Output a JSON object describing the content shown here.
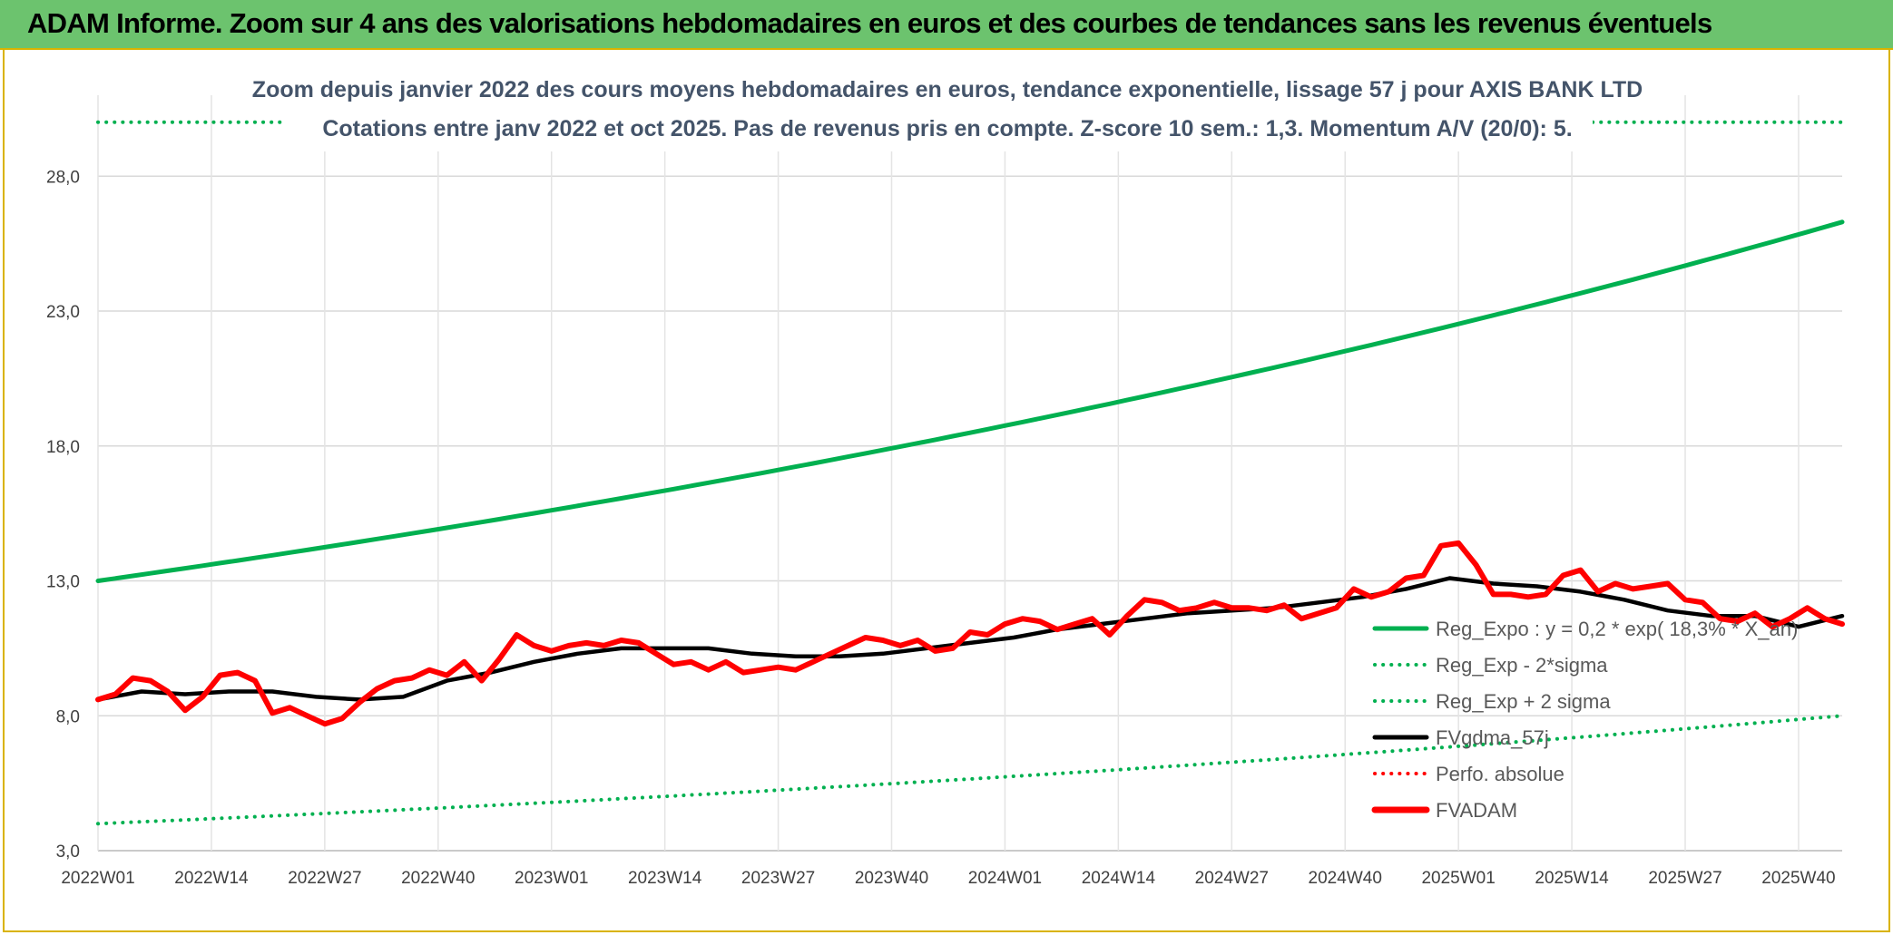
{
  "header": {
    "title": "ADAM Informe. Zoom sur 4 ans des valorisations hebdomadaires en euros et des courbes de tendances sans les revenus éventuels"
  },
  "chart_data": {
    "type": "line",
    "title": "Zoom depuis janvier 2022 des cours moyens hebdomadaires en euros, tendance exponentielle, lissage 57 j pour AXIS BANK LTD",
    "subtitle": "Cotations entre janv 2022 et oct 2025. Pas de revenus pris en compte. Z-score 10 sem.: 1,3. Momentum A/V (20/0): 5.",
    "xlabel": "",
    "ylabel": "",
    "ylim": [
      3.0,
      31.0
    ],
    "yticks": [
      "3,0",
      "8,0",
      "13,0",
      "18,0",
      "23,0",
      "28,0"
    ],
    "ytick_values": [
      3,
      8,
      13,
      18,
      23,
      28
    ],
    "xticks": [
      "2022W01",
      "2022W14",
      "2022W27",
      "2022W40",
      "2023W01",
      "2023W14",
      "2023W27",
      "2023W40",
      "2024W01",
      "2024W14",
      "2024W27",
      "2024W40",
      "2025W01",
      "2025W14",
      "2025W27",
      "2025W40"
    ],
    "weeks_total": 201,
    "grid": true,
    "legend_position": "right",
    "series": [
      {
        "name": "Reg_Expo : y = 0,2 * exp( 18,3% * X_an)",
        "color": "#00b050",
        "style": "solid",
        "start": 13.0,
        "end": 26.3
      },
      {
        "name": "Reg_Exp - 2*sigma",
        "color": "#00b050",
        "style": "dotted",
        "start": 4.0,
        "end": 8.0
      },
      {
        "name": "Reg_Exp + 2 sigma",
        "color": "#00b050",
        "style": "dotted",
        "start": 30.0,
        "end": 30.0
      },
      {
        "name": "FVgdma_57j",
        "color": "#000000",
        "style": "solid",
        "points": [
          [
            0,
            8.6
          ],
          [
            5,
            8.9
          ],
          [
            10,
            8.8
          ],
          [
            15,
            8.9
          ],
          [
            20,
            8.9
          ],
          [
            25,
            8.7
          ],
          [
            30,
            8.6
          ],
          [
            35,
            8.7
          ],
          [
            40,
            9.3
          ],
          [
            45,
            9.6
          ],
          [
            50,
            10.0
          ],
          [
            55,
            10.3
          ],
          [
            60,
            10.5
          ],
          [
            65,
            10.5
          ],
          [
            70,
            10.5
          ],
          [
            75,
            10.3
          ],
          [
            80,
            10.2
          ],
          [
            85,
            10.2
          ],
          [
            90,
            10.3
          ],
          [
            95,
            10.5
          ],
          [
            100,
            10.7
          ],
          [
            105,
            10.9
          ],
          [
            110,
            11.2
          ],
          [
            115,
            11.4
          ],
          [
            120,
            11.6
          ],
          [
            125,
            11.8
          ],
          [
            130,
            11.9
          ],
          [
            135,
            12.0
          ],
          [
            140,
            12.2
          ],
          [
            145,
            12.4
          ],
          [
            150,
            12.7
          ],
          [
            155,
            13.1
          ],
          [
            160,
            12.9
          ],
          [
            165,
            12.8
          ],
          [
            170,
            12.6
          ],
          [
            175,
            12.3
          ],
          [
            180,
            11.9
          ],
          [
            185,
            11.7
          ],
          [
            190,
            11.7
          ],
          [
            195,
            11.3
          ],
          [
            200,
            11.7
          ]
        ]
      },
      {
        "name": "Perfo. absolue",
        "color": "#ff0000",
        "style": "dotted",
        "points": []
      },
      {
        "name": "FVADAM",
        "color": "#ff0000",
        "style": "solid",
        "points": [
          [
            0,
            8.6
          ],
          [
            2,
            8.8
          ],
          [
            4,
            9.4
          ],
          [
            6,
            9.3
          ],
          [
            8,
            8.9
          ],
          [
            10,
            8.2
          ],
          [
            12,
            8.7
          ],
          [
            14,
            9.5
          ],
          [
            16,
            9.6
          ],
          [
            18,
            9.3
          ],
          [
            20,
            8.1
          ],
          [
            22,
            8.3
          ],
          [
            24,
            8.0
          ],
          [
            26,
            7.7
          ],
          [
            28,
            7.9
          ],
          [
            30,
            8.5
          ],
          [
            32,
            9.0
          ],
          [
            34,
            9.3
          ],
          [
            36,
            9.4
          ],
          [
            38,
            9.7
          ],
          [
            40,
            9.5
          ],
          [
            42,
            10.0
          ],
          [
            44,
            9.3
          ],
          [
            46,
            10.1
          ],
          [
            48,
            11.0
          ],
          [
            50,
            10.6
          ],
          [
            52,
            10.4
          ],
          [
            54,
            10.6
          ],
          [
            56,
            10.7
          ],
          [
            58,
            10.6
          ],
          [
            60,
            10.8
          ],
          [
            62,
            10.7
          ],
          [
            64,
            10.3
          ],
          [
            66,
            9.9
          ],
          [
            68,
            10.0
          ],
          [
            70,
            9.7
          ],
          [
            72,
            10.0
          ],
          [
            74,
            9.6
          ],
          [
            76,
            9.7
          ],
          [
            78,
            9.8
          ],
          [
            80,
            9.7
          ],
          [
            82,
            10.0
          ],
          [
            84,
            10.3
          ],
          [
            86,
            10.6
          ],
          [
            88,
            10.9
          ],
          [
            90,
            10.8
          ],
          [
            92,
            10.6
          ],
          [
            94,
            10.8
          ],
          [
            96,
            10.4
          ],
          [
            98,
            10.5
          ],
          [
            100,
            11.1
          ],
          [
            102,
            11.0
          ],
          [
            104,
            11.4
          ],
          [
            106,
            11.6
          ],
          [
            108,
            11.5
          ],
          [
            110,
            11.2
          ],
          [
            112,
            11.4
          ],
          [
            114,
            11.6
          ],
          [
            116,
            11.0
          ],
          [
            118,
            11.7
          ],
          [
            120,
            12.3
          ],
          [
            122,
            12.2
          ],
          [
            124,
            11.9
          ],
          [
            126,
            12.0
          ],
          [
            128,
            12.2
          ],
          [
            130,
            12.0
          ],
          [
            132,
            12.0
          ],
          [
            134,
            11.9
          ],
          [
            136,
            12.1
          ],
          [
            138,
            11.6
          ],
          [
            140,
            11.8
          ],
          [
            142,
            12.0
          ],
          [
            144,
            12.7
          ],
          [
            146,
            12.4
          ],
          [
            148,
            12.6
          ],
          [
            150,
            13.1
          ],
          [
            152,
            13.2
          ],
          [
            154,
            14.3
          ],
          [
            156,
            14.4
          ],
          [
            158,
            13.6
          ],
          [
            160,
            12.5
          ],
          [
            162,
            12.5
          ],
          [
            164,
            12.4
          ],
          [
            166,
            12.5
          ],
          [
            168,
            13.2
          ],
          [
            170,
            13.4
          ],
          [
            172,
            12.6
          ],
          [
            174,
            12.9
          ],
          [
            176,
            12.7
          ],
          [
            178,
            12.8
          ],
          [
            180,
            12.9
          ],
          [
            182,
            12.3
          ],
          [
            184,
            12.2
          ],
          [
            186,
            11.6
          ],
          [
            188,
            11.5
          ],
          [
            190,
            11.8
          ],
          [
            192,
            11.3
          ],
          [
            194,
            11.6
          ],
          [
            196,
            12.0
          ],
          [
            198,
            11.6
          ],
          [
            200,
            11.4
          ]
        ]
      }
    ]
  }
}
